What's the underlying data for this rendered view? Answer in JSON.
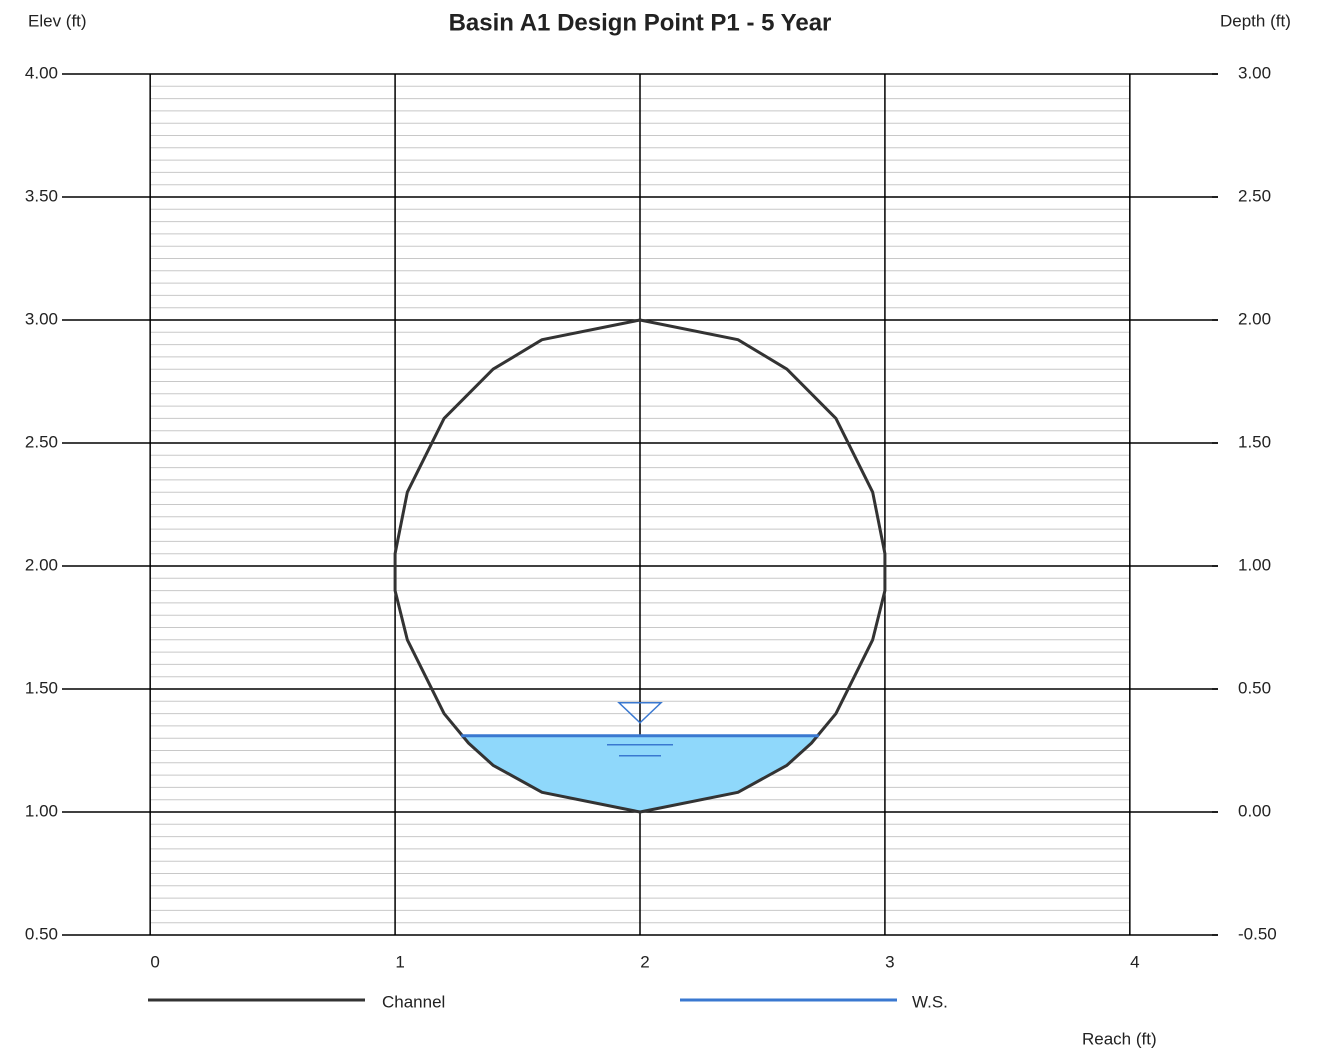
{
  "chart_data": {
    "type": "line",
    "title": "Basin A1 Design Point P1 - 5 Year",
    "y_label": "Elev (ft)",
    "y2_label": "Depth (ft)",
    "x_label": "Reach (ft)",
    "xlim": [
      -0.36,
      4.36
    ],
    "xticks": [
      0,
      1,
      2,
      3,
      4
    ],
    "ylim": [
      0.5,
      4.0
    ],
    "yticks": [
      {
        "value": 0.5,
        "label": "0.50"
      },
      {
        "value": 1.0,
        "label": "1.00"
      },
      {
        "value": 1.5,
        "label": "1.50"
      },
      {
        "value": 2.0,
        "label": "2.00"
      },
      {
        "value": 2.5,
        "label": "2.50"
      },
      {
        "value": 3.0,
        "label": "3.00"
      },
      {
        "value": 3.5,
        "label": "3.50"
      },
      {
        "value": 4.0,
        "label": "4.00"
      }
    ],
    "y2lim": [
      -0.5,
      3.0
    ],
    "y2ticks": [
      {
        "value": -0.5,
        "label": "-0.50"
      },
      {
        "value": 0.0,
        "label": "0.00"
      },
      {
        "value": 0.5,
        "label": "0.50"
      },
      {
        "value": 1.0,
        "label": "1.00"
      },
      {
        "value": 1.5,
        "label": "1.50"
      },
      {
        "value": 2.0,
        "label": "2.00"
      },
      {
        "value": 2.5,
        "label": "2.50"
      },
      {
        "value": 3.0,
        "label": "3.00"
      }
    ],
    "grid": true,
    "minor_grid": true,
    "water_fill_color": "#8fd8fb",
    "series": [
      {
        "name": "Channel",
        "color": "#333333",
        "x": [
          2.0,
          2.4,
          2.6,
          2.8,
          2.95,
          3.0,
          3.0,
          2.95,
          2.8,
          2.7,
          2.6,
          2.4,
          2.0,
          1.6,
          1.4,
          1.3,
          1.2,
          1.05,
          1.0,
          1.0,
          1.05,
          1.2,
          1.4,
          1.6,
          2.0
        ],
        "values": [
          3.0,
          2.92,
          2.8,
          2.6,
          2.3,
          2.05,
          1.9,
          1.7,
          1.4,
          1.28,
          1.19,
          1.08,
          1.0,
          1.08,
          1.19,
          1.28,
          1.4,
          1.7,
          1.9,
          2.05,
          2.3,
          2.6,
          2.8,
          2.92,
          3.0
        ]
      },
      {
        "name": "W.S.",
        "color": "#3a78d0",
        "x": [
          1.27,
          2.73
        ],
        "values": [
          1.31,
          1.31
        ]
      }
    ]
  }
}
